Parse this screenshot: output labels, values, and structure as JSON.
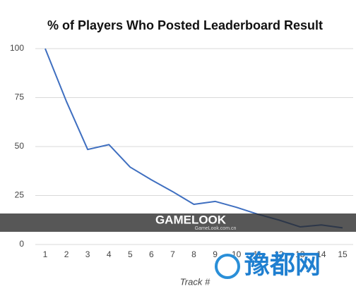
{
  "chart_data": {
    "type": "line",
    "title": "% of Players Who Posted Leaderboard Result",
    "x_label": "Track #",
    "categories": [
      "1",
      "2",
      "3",
      "4",
      "5",
      "6",
      "7",
      "8",
      "9",
      "10",
      "11",
      "12",
      "13",
      "14",
      "15"
    ],
    "series": [
      {
        "name": "% of Players",
        "color": "#3f6fc0",
        "values": [
          100,
          73,
          48.5,
          51,
          39.5,
          33,
          27,
          20.5,
          22,
          19,
          15.5,
          12.5,
          9,
          10,
          8.5
        ]
      }
    ],
    "ylim": [
      0,
      100
    ],
    "yticks": [
      0,
      25,
      50,
      75,
      100
    ],
    "grid": true
  },
  "watermark": {
    "brand": "GAMELOOK",
    "site": "GameLook.com.cn",
    "logo": "豫都网"
  }
}
